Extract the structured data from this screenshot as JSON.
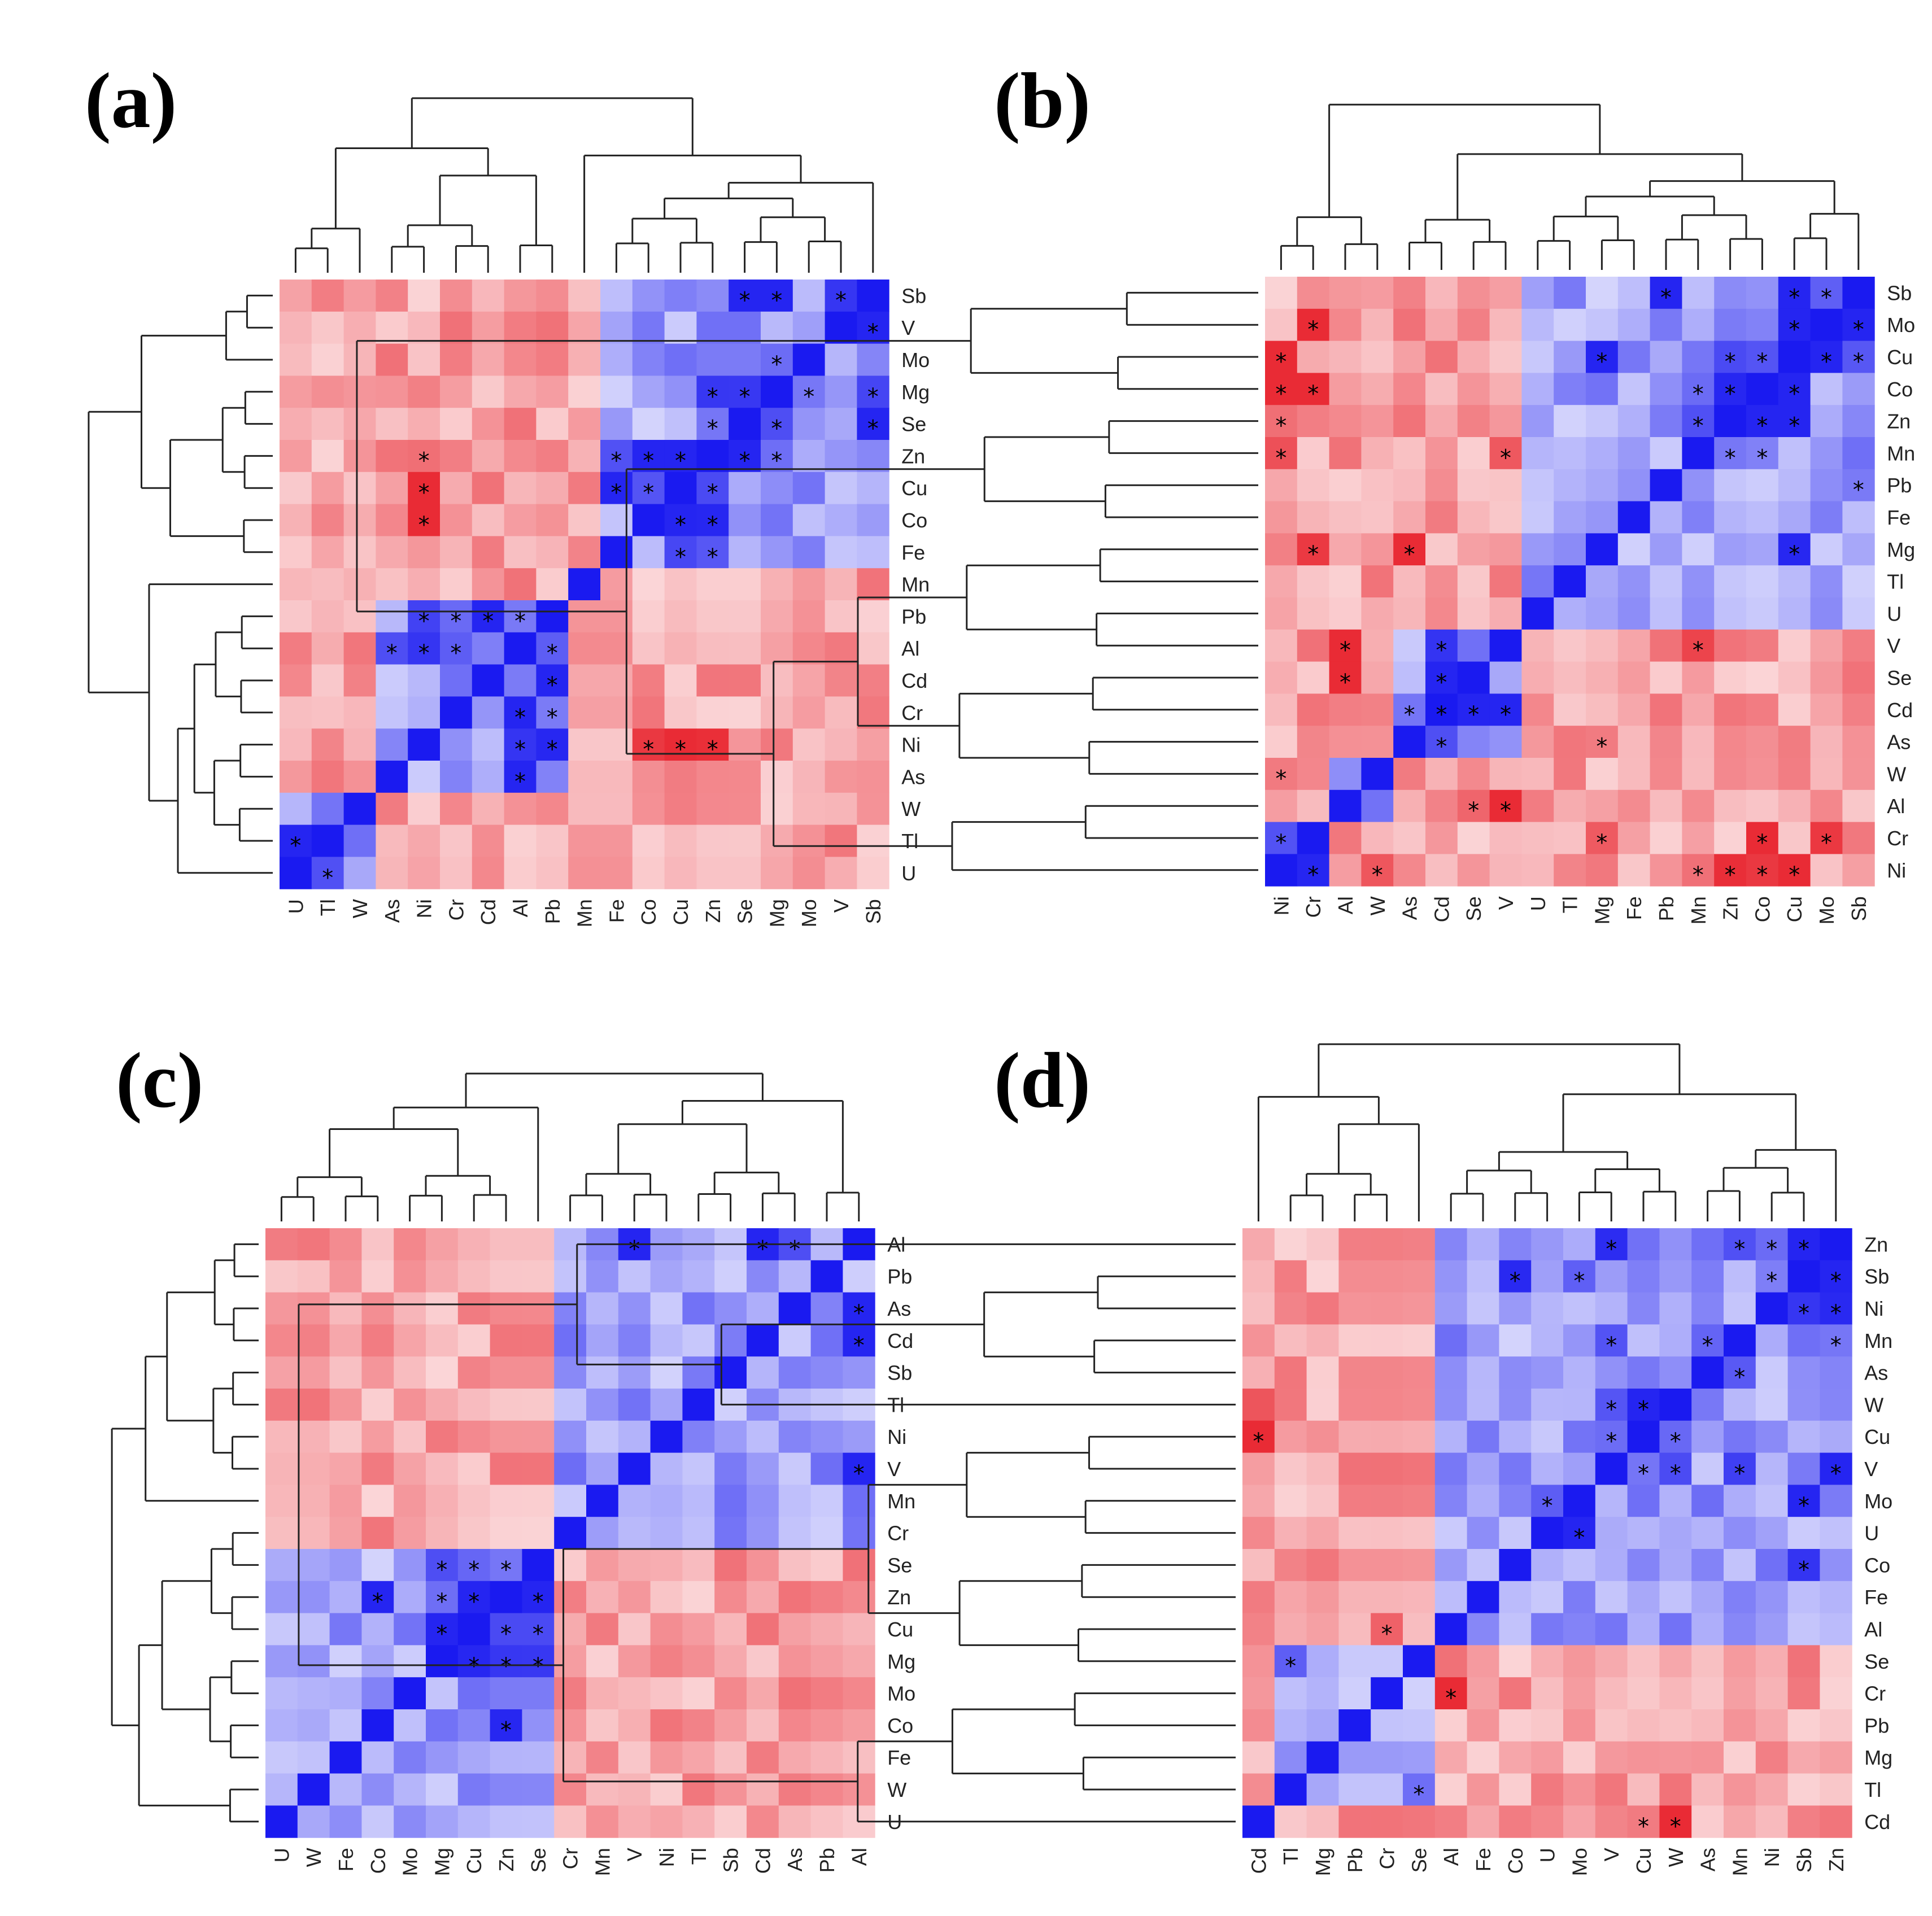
{
  "colors": {
    "positive": "#e8202a",
    "negative": "#1a1af0",
    "neutral": "#ffffff",
    "significance_marker": "#000000"
  },
  "chart_data": [
    {
      "type": "heatmap",
      "panel": "(a)",
      "significance_symbol": "*",
      "dendrograms": "top-and-left",
      "x_labels": [
        "U",
        "Tl",
        "W",
        "As",
        "Ni",
        "Cr",
        "Cd",
        "Al",
        "Pb",
        "Mn",
        "Fe",
        "Co",
        "Cu",
        "Zn",
        "Se",
        "Mg",
        "Mo",
        "V",
        "Sb"
      ],
      "y_labels": [
        "Sb",
        "V",
        "Mo",
        "Mg",
        "Se",
        "Zn",
        "Cu",
        "Co",
        "Fe",
        "Mn",
        "Pb",
        "Al",
        "Cd",
        "Cr",
        "Ni",
        "As",
        "W",
        "Tl",
        "U"
      ],
      "groups": [
        [
          "U",
          "Tl",
          "W"
        ],
        [
          "As",
          "Ni",
          "Cr",
          "Cd",
          "Al",
          "Pb"
        ],
        [
          "Mn"
        ],
        [
          "Fe",
          "Co",
          "Cu",
          "Zn",
          "Se",
          "Mg",
          "Mo",
          "V",
          "Sb"
        ]
      ],
      "significant": [
        [
          "Sb",
          "Se"
        ],
        [
          "Sb",
          "Mg"
        ],
        [
          "Sb",
          "V"
        ],
        [
          "V",
          "Sb"
        ],
        [
          "Mo",
          "Mg"
        ],
        [
          "Mg",
          "Zn"
        ],
        [
          "Mg",
          "Se"
        ],
        [
          "Mg",
          "Mo"
        ],
        [
          "Mg",
          "Sb"
        ],
        [
          "Se",
          "Zn"
        ],
        [
          "Se",
          "Mg"
        ],
        [
          "Se",
          "Sb"
        ],
        [
          "Zn",
          "Ni"
        ],
        [
          "Zn",
          "Fe"
        ],
        [
          "Zn",
          "Co"
        ],
        [
          "Zn",
          "Cu"
        ],
        [
          "Zn",
          "Se"
        ],
        [
          "Zn",
          "Mg"
        ],
        [
          "Cu",
          "Ni"
        ],
        [
          "Cu",
          "Fe"
        ],
        [
          "Cu",
          "Co"
        ],
        [
          "Cu",
          "Zn"
        ],
        [
          "Co",
          "Ni"
        ],
        [
          "Co",
          "Cu"
        ],
        [
          "Co",
          "Zn"
        ],
        [
          "Fe",
          "Cu"
        ],
        [
          "Fe",
          "Zn"
        ],
        [
          "Pb",
          "Ni"
        ],
        [
          "Pb",
          "Cr"
        ],
        [
          "Pb",
          "Cd"
        ],
        [
          "Pb",
          "Al"
        ],
        [
          "Al",
          "As"
        ],
        [
          "Al",
          "Ni"
        ],
        [
          "Al",
          "Cr"
        ],
        [
          "Al",
          "Pb"
        ],
        [
          "Cd",
          "Pb"
        ],
        [
          "Cr",
          "Al"
        ],
        [
          "Cr",
          "Pb"
        ],
        [
          "Ni",
          "Al"
        ],
        [
          "Ni",
          "Pb"
        ],
        [
          "Ni",
          "Co"
        ],
        [
          "Ni",
          "Cu"
        ],
        [
          "Ni",
          "Zn"
        ],
        [
          "As",
          "Al"
        ],
        [
          "Tl",
          "U"
        ],
        [
          "U",
          "Tl"
        ]
      ]
    },
    {
      "type": "heatmap",
      "panel": "(b)",
      "significance_symbol": "*",
      "dendrograms": "top-and-left",
      "x_labels": [
        "Ni",
        "Cr",
        "Al",
        "W",
        "As",
        "Cd",
        "Se",
        "V",
        "U",
        "Tl",
        "Mg",
        "Fe",
        "Pb",
        "Mn",
        "Zn",
        "Co",
        "Cu",
        "Mo",
        "Sb"
      ],
      "y_labels": [
        "Sb",
        "Mo",
        "Cu",
        "Co",
        "Zn",
        "Mn",
        "Pb",
        "Fe",
        "Mg",
        "Tl",
        "U",
        "V",
        "Se",
        "Cd",
        "As",
        "W",
        "Al",
        "Cr",
        "Ni"
      ],
      "groups": [
        [
          "Ni",
          "Cr"
        ],
        [
          "Al",
          "W"
        ],
        [
          "As",
          "Cd",
          "Se",
          "V"
        ],
        [
          "U",
          "Tl",
          "Mg",
          "Fe",
          "Pb",
          "Mn",
          "Zn",
          "Co",
          "Cu",
          "Mo",
          "Sb"
        ]
      ],
      "significant": [
        [
          "Sb",
          "Pb"
        ],
        [
          "Sb",
          "Cu"
        ],
        [
          "Sb",
          "Mo"
        ],
        [
          "Mo",
          "Cr"
        ],
        [
          "Mo",
          "Cu"
        ],
        [
          "Mo",
          "Sb"
        ],
        [
          "Cu",
          "Ni"
        ],
        [
          "Cu",
          "Mg"
        ],
        [
          "Cu",
          "Zn"
        ],
        [
          "Cu",
          "Co"
        ],
        [
          "Cu",
          "Mo"
        ],
        [
          "Cu",
          "Sb"
        ],
        [
          "Co",
          "Ni"
        ],
        [
          "Co",
          "Cr"
        ],
        [
          "Co",
          "Mn"
        ],
        [
          "Co",
          "Zn"
        ],
        [
          "Co",
          "Cu"
        ],
        [
          "Zn",
          "Ni"
        ],
        [
          "Zn",
          "Mn"
        ],
        [
          "Zn",
          "Co"
        ],
        [
          "Zn",
          "Cu"
        ],
        [
          "Mn",
          "Ni"
        ],
        [
          "Mn",
          "V"
        ],
        [
          "Mn",
          "Zn"
        ],
        [
          "Mn",
          "Co"
        ],
        [
          "Pb",
          "Sb"
        ],
        [
          "Mg",
          "Cr"
        ],
        [
          "Mg",
          "As"
        ],
        [
          "Mg",
          "Cu"
        ],
        [
          "V",
          "Al"
        ],
        [
          "V",
          "Cd"
        ],
        [
          "V",
          "Mn"
        ],
        [
          "Se",
          "Al"
        ],
        [
          "Se",
          "Cd"
        ],
        [
          "Cd",
          "As"
        ],
        [
          "Cd",
          "Cd"
        ],
        [
          "Cd",
          "Se"
        ],
        [
          "Cd",
          "V"
        ],
        [
          "As",
          "Cd"
        ],
        [
          "As",
          "Mg"
        ],
        [
          "W",
          "Ni"
        ],
        [
          "Al",
          "Se"
        ],
        [
          "Al",
          "V"
        ],
        [
          "Cr",
          "Ni"
        ],
        [
          "Cr",
          "Mg"
        ],
        [
          "Cr",
          "Co"
        ],
        [
          "Cr",
          "Mo"
        ],
        [
          "Ni",
          "Cr"
        ],
        [
          "Ni",
          "W"
        ],
        [
          "Ni",
          "Mn"
        ],
        [
          "Ni",
          "Zn"
        ],
        [
          "Ni",
          "Co"
        ],
        [
          "Ni",
          "Cu"
        ]
      ]
    },
    {
      "type": "heatmap",
      "panel": "(c)",
      "significance_symbol": "*",
      "dendrograms": "top-and-left",
      "x_labels": [
        "U",
        "W",
        "Fe",
        "Co",
        "Mo",
        "Mg",
        "Cu",
        "Zn",
        "Se",
        "Cr",
        "Mn",
        "V",
        "Ni",
        "Tl",
        "Sb",
        "Cd",
        "As",
        "Pb",
        "Al"
      ],
      "y_labels": [
        "Al",
        "Pb",
        "As",
        "Cd",
        "Sb",
        "Tl",
        "Ni",
        "V",
        "Mn",
        "Cr",
        "Se",
        "Zn",
        "Cu",
        "Mg",
        "Mo",
        "Co",
        "Fe",
        "W",
        "U"
      ],
      "groups": [
        [
          "U",
          "W",
          "Fe",
          "Co",
          "Mo",
          "Mg",
          "Cu",
          "Zn",
          "Se"
        ],
        [
          "Cr",
          "Mn",
          "V",
          "Ni",
          "Tl",
          "Sb",
          "Cd",
          "As",
          "Pb",
          "Al"
        ]
      ],
      "significant": [
        [
          "Al",
          "V"
        ],
        [
          "Al",
          "Cd"
        ],
        [
          "Al",
          "As"
        ],
        [
          "As",
          "Al"
        ],
        [
          "Cd",
          "Al"
        ],
        [
          "V",
          "Al"
        ],
        [
          "Se",
          "Mg"
        ],
        [
          "Se",
          "Cu"
        ],
        [
          "Se",
          "Zn"
        ],
        [
          "Zn",
          "Co"
        ],
        [
          "Zn",
          "Mg"
        ],
        [
          "Zn",
          "Cu"
        ],
        [
          "Zn",
          "Se"
        ],
        [
          "Cu",
          "Mg"
        ],
        [
          "Cu",
          "Zn"
        ],
        [
          "Cu",
          "Se"
        ],
        [
          "Mg",
          "Cu"
        ],
        [
          "Mg",
          "Zn"
        ],
        [
          "Mg",
          "Se"
        ],
        [
          "Co",
          "Zn"
        ]
      ]
    },
    {
      "type": "heatmap",
      "panel": "(d)",
      "significance_symbol": "*",
      "dendrograms": "top-and-left",
      "x_labels": [
        "Cd",
        "Tl",
        "Mg",
        "Pb",
        "Cr",
        "Se",
        "Al",
        "Fe",
        "Co",
        "U",
        "Mo",
        "V",
        "Cu",
        "W",
        "As",
        "Mn",
        "Ni",
        "Sb",
        "Zn"
      ],
      "y_labels": [
        "Zn",
        "Sb",
        "Ni",
        "Mn",
        "As",
        "W",
        "Cu",
        "V",
        "Mo",
        "U",
        "Co",
        "Fe",
        "Al",
        "Se",
        "Cr",
        "Pb",
        "Mg",
        "Tl",
        "Cd"
      ],
      "groups": [
        [
          "Cd"
        ],
        [
          "Tl",
          "Mg",
          "Pb",
          "Cr",
          "Se"
        ],
        [
          "Al",
          "Fe",
          "Co",
          "U",
          "Mo",
          "V",
          "Cu",
          "W",
          "As",
          "Mn",
          "Ni",
          "Sb",
          "Zn"
        ]
      ],
      "significant": [
        [
          "Zn",
          "V"
        ],
        [
          "Zn",
          "Mn"
        ],
        [
          "Zn",
          "Ni"
        ],
        [
          "Zn",
          "Sb"
        ],
        [
          "Sb",
          "Co"
        ],
        [
          "Sb",
          "Mo"
        ],
        [
          "Sb",
          "Ni"
        ],
        [
          "Sb",
          "Zn"
        ],
        [
          "Ni",
          "Sb"
        ],
        [
          "Ni",
          "Zn"
        ],
        [
          "Mn",
          "V"
        ],
        [
          "Mn",
          "As"
        ],
        [
          "Mn",
          "Zn"
        ],
        [
          "As",
          "Mn"
        ],
        [
          "W",
          "V"
        ],
        [
          "W",
          "Cu"
        ],
        [
          "Cu",
          "Cd"
        ],
        [
          "Cu",
          "V"
        ],
        [
          "Cu",
          "W"
        ],
        [
          "V",
          "Cu"
        ],
        [
          "V",
          "W"
        ],
        [
          "V",
          "Mn"
        ],
        [
          "V",
          "Zn"
        ],
        [
          "Mo",
          "U"
        ],
        [
          "Mo",
          "Sb"
        ],
        [
          "U",
          "Mo"
        ],
        [
          "Co",
          "Sb"
        ],
        [
          "Al",
          "Cr"
        ],
        [
          "Se",
          "Tl"
        ],
        [
          "Cr",
          "Al"
        ],
        [
          "Tl",
          "Se"
        ],
        [
          "Cd",
          "Cu"
        ],
        [
          "Cd",
          "W"
        ]
      ]
    }
  ]
}
